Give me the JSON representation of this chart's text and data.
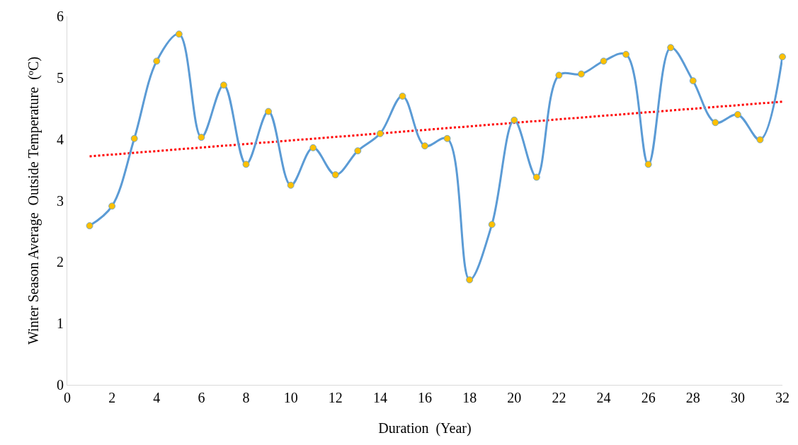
{
  "chart_data": {
    "type": "line",
    "xlabel": "Duration  (Year)",
    "ylabel": "Winter Season Average  Outside Temperature  (ºC)",
    "x": [
      1,
      2,
      3,
      4,
      5,
      6,
      7,
      8,
      9,
      10,
      11,
      12,
      13,
      14,
      15,
      16,
      17,
      18,
      19,
      20,
      21,
      22,
      23,
      24,
      25,
      26,
      27,
      28,
      29,
      30,
      31,
      32
    ],
    "series": [
      {
        "color": "#5b9bd5",
        "marker": "circle",
        "line_style": "solid",
        "colors": [
          "#ffc000",
          "#ffc000",
          "#ffc000",
          "#ffc000",
          "#ffc000",
          "#ffc000",
          "#ffc000",
          "#ffc000",
          "#ffc000",
          "#ffc000",
          "#ffc000",
          "#ffc000",
          "#ffc000",
          "#ffc000",
          "#ffc000",
          "#ffc000",
          "#ffc000",
          "#ffc000",
          "#ffc000",
          "#ffc000",
          "#ffc000",
          "#ffc000",
          "#ffc000",
          "#ffc000",
          "#ffc000",
          "#ffc000",
          "#ffc000",
          "#ffc000",
          "#ffc000",
          "#ffc000",
          "#ffc000",
          "#ffc000"
        ],
        "values": [
          2.59,
          2.91,
          4.01,
          5.27,
          5.71,
          4.03,
          4.88,
          3.59,
          4.45,
          3.25,
          3.86,
          3.42,
          3.81,
          4.09,
          4.7,
          3.89,
          4.01,
          1.71,
          2.61,
          4.31,
          3.38,
          5.04,
          5.06,
          5.27,
          5.38,
          3.59,
          5.49,
          4.95,
          4.27,
          4.4,
          3.99,
          5.34
        ]
      },
      {
        "type": "line",
        "color": "#ff0000",
        "marker": "none",
        "line_style": "dotted",
        "x": [
          1,
          32
        ],
        "values": [
          3.72,
          4.61
        ]
      }
    ],
    "xlim": [
      0,
      32
    ],
    "xticks": [
      0,
      2,
      4,
      6,
      8,
      10,
      12,
      14,
      16,
      18,
      20,
      22,
      24,
      26,
      28,
      30,
      32
    ],
    "ylim": [
      0,
      6
    ],
    "yticks": [
      0,
      1,
      2,
      3,
      4,
      5,
      6
    ],
    "grid": false
  }
}
